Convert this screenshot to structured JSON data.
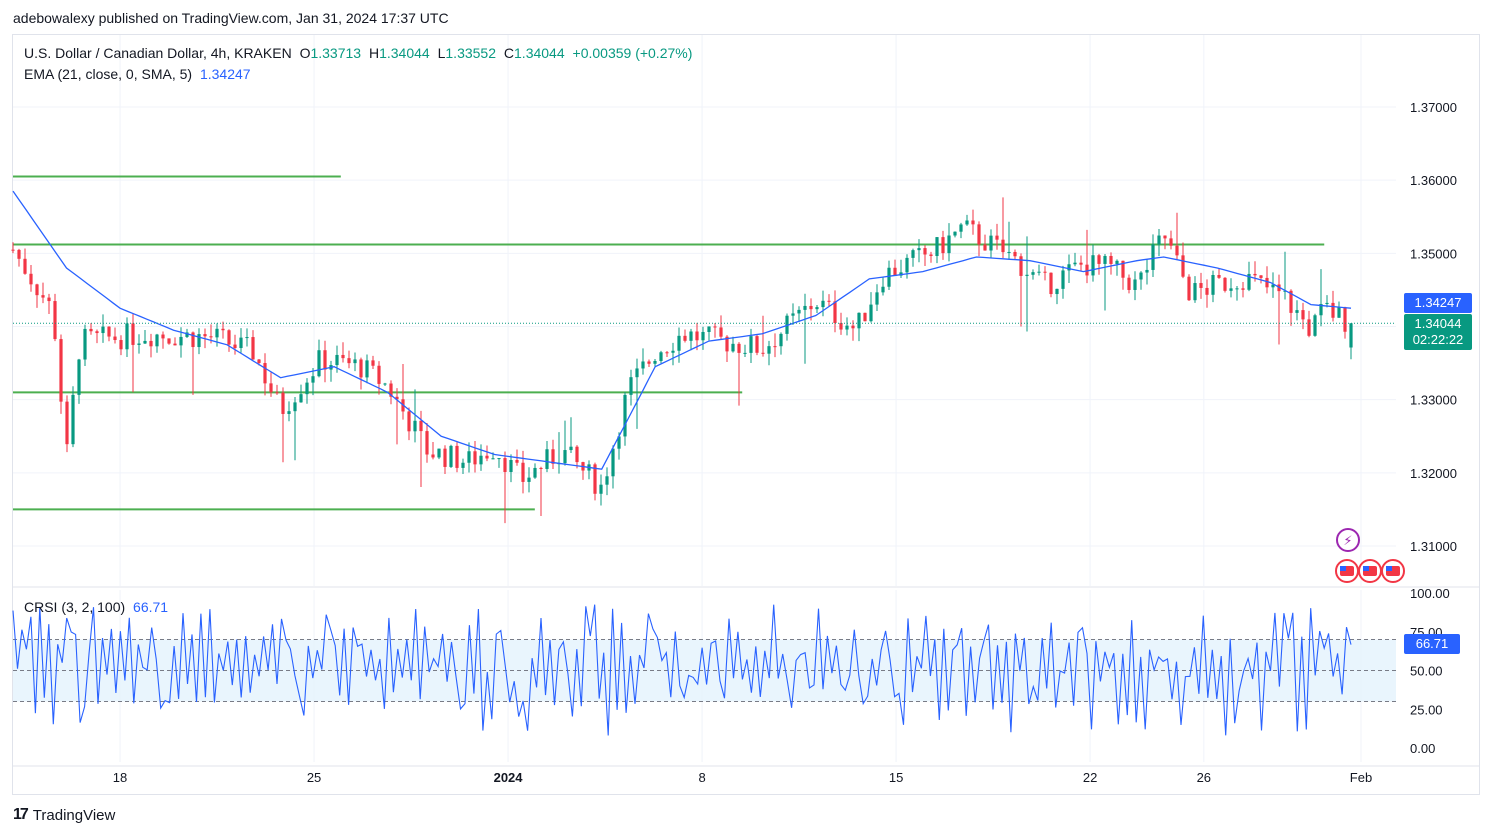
{
  "header": {
    "publisher_text": "adebowalexy published on TradingView.com, Jan 31, 2024 17:37 UTC"
  },
  "legend": {
    "symbol": "U.S. Dollar / Canadian Dollar, 4h, KRAKEN",
    "o_label": "O",
    "o_value": "1.33713",
    "h_label": "H",
    "h_value": "1.34044",
    "l_label": "L",
    "l_value": "1.33552",
    "c_label": "C",
    "c_value": "1.34044",
    "change": "+0.00359 (+0.27%)",
    "ema_label": "EMA (21, close, 0, SMA, 5)",
    "ema_value": "1.34247",
    "crsi_label": "CRSI (3, 2, 100)",
    "crsi_value": "66.71"
  },
  "price_tags": {
    "ema": "1.34247",
    "last": "1.34044",
    "countdown": "02:22:22",
    "crsi": "66.71"
  },
  "footer": {
    "brand": "TradingView",
    "logo": "17"
  },
  "colors": {
    "up": "#089981",
    "down": "#f23645",
    "ema": "#2962ff",
    "level": "#4caf50",
    "crsi": "#2962ff",
    "band": "#e3f2fd"
  },
  "chart_data": [
    {
      "type": "candlestick",
      "title": "U.S. Dollar / Canadian Dollar, 4h, KRAKEN",
      "ylim": [
        1.308,
        1.375
      ],
      "y_ticks": [
        "1.37000",
        "1.36000",
        "1.35000",
        "1.34000",
        "1.33000",
        "1.32000",
        "1.31000"
      ],
      "x_ticks": [
        "18",
        "25",
        "2024",
        "8",
        "15",
        "22",
        "26",
        "Feb"
      ],
      "horizontal_levels": [
        {
          "price": 1.3605,
          "from": "start",
          "to": "Dec 27"
        },
        {
          "price": 1.3512,
          "from": "start",
          "to": "Jan 31"
        },
        {
          "price": 1.331,
          "from": "start",
          "to": "Jan 11"
        },
        {
          "price": 1.315,
          "from": "start",
          "to": "Jan 3"
        }
      ],
      "series": [
        {
          "name": "EMA (21, close, 0, SMA, 5)",
          "last": 1.34247,
          "anchors": [
            [
              0,
              1.3585
            ],
            [
              0.04,
              1.348
            ],
            [
              0.08,
              1.3425
            ],
            [
              0.12,
              1.3395
            ],
            [
              0.16,
              1.3375
            ],
            [
              0.2,
              1.333
            ],
            [
              0.24,
              1.3345
            ],
            [
              0.28,
              1.331
            ],
            [
              0.32,
              1.325
            ],
            [
              0.36,
              1.3225
            ],
            [
              0.4,
              1.3215
            ],
            [
              0.44,
              1.3205
            ],
            [
              0.48,
              1.3345
            ],
            [
              0.52,
              1.338
            ],
            [
              0.56,
              1.339
            ],
            [
              0.6,
              1.3415
            ],
            [
              0.64,
              1.3465
            ],
            [
              0.68,
              1.3475
            ],
            [
              0.72,
              1.3495
            ],
            [
              0.76,
              1.349
            ],
            [
              0.8,
              1.3475
            ],
            [
              0.84,
              1.349
            ],
            [
              0.86,
              1.3495
            ],
            [
              0.9,
              1.348
            ],
            [
              0.94,
              1.346
            ],
            [
              0.97,
              1.343
            ],
            [
              1.0,
              1.3425
            ]
          ]
        }
      ],
      "close_path": [
        [
          0,
          1.3505
        ],
        [
          0.03,
          1.342
        ],
        [
          0.04,
          1.322
        ],
        [
          0.05,
          1.338
        ],
        [
          0.1,
          1.339
        ],
        [
          0.15,
          1.3385
        ],
        [
          0.18,
          1.3365
        ],
        [
          0.2,
          1.3285
        ],
        [
          0.23,
          1.3355
        ],
        [
          0.26,
          1.3345
        ],
        [
          0.28,
          1.3318
        ],
        [
          0.31,
          1.323
        ],
        [
          0.34,
          1.3215
        ],
        [
          0.36,
          1.3235
        ],
        [
          0.38,
          1.319
        ],
        [
          0.41,
          1.323
        ],
        [
          0.44,
          1.318
        ],
        [
          0.46,
          1.3315
        ],
        [
          0.48,
          1.3365
        ],
        [
          0.5,
          1.339
        ],
        [
          0.53,
          1.338
        ],
        [
          0.56,
          1.337
        ],
        [
          0.6,
          1.3435
        ],
        [
          0.63,
          1.3395
        ],
        [
          0.65,
          1.347
        ],
        [
          0.69,
          1.3505
        ],
        [
          0.71,
          1.3535
        ],
        [
          0.75,
          1.349
        ],
        [
          0.77,
          1.3455
        ],
        [
          0.8,
          1.3485
        ],
        [
          0.82,
          1.348
        ],
        [
          0.84,
          1.3455
        ],
        [
          0.86,
          1.3525
        ],
        [
          0.88,
          1.3445
        ],
        [
          0.92,
          1.3468
        ],
        [
          0.95,
          1.344
        ],
        [
          0.97,
          1.3395
        ],
        [
          0.98,
          1.3425
        ],
        [
          1.0,
          1.34044
        ]
      ],
      "last_candle": {
        "open": 1.33713,
        "high": 1.34044,
        "low": 1.33552,
        "close": 1.34044
      }
    },
    {
      "type": "line",
      "title": "CRSI (3, 2, 100)",
      "ylim": [
        0,
        100
      ],
      "y_ticks": [
        "100.00",
        "75.00",
        "50.00",
        "25.00",
        "0.00"
      ],
      "band": [
        30,
        70
      ],
      "last": 66.71
    }
  ]
}
